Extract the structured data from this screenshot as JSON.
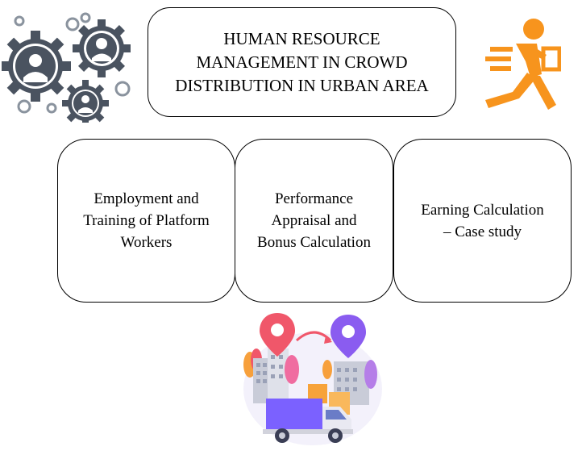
{
  "title": "HUMAN RESOURCE\nMANAGEMENT IN CROWD\nDISTRIBUTION IN URBAN AREA",
  "topics": [
    {
      "label": "Employment and\nTraining of Platform\nWorkers"
    },
    {
      "label": "Performance\nAppraisal and\nBonus Calculation"
    },
    {
      "label": "Earning Calculation\n– Case study"
    }
  ],
  "icons": {
    "people_gears": "people-gears-icon",
    "courier": "courier-running-icon",
    "city_delivery": "city-delivery-illustration"
  },
  "colors": {
    "gear": "#4a5360",
    "courier": "#f7941d",
    "pin_red": "#f0576a",
    "pin_purple": "#8a5cf0",
    "truck": "#7b61ff",
    "box": "#f7a33a",
    "building": "#c9ccd8"
  }
}
